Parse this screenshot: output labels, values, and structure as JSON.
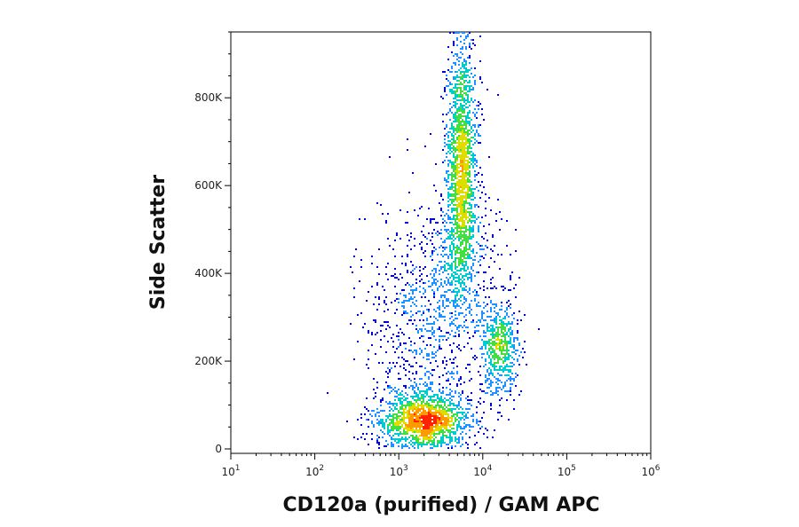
{
  "chart_data": {
    "type": "scatter",
    "title": "",
    "xlabel": "CD120a (purified) / GAM APC",
    "ylabel": "Side Scatter",
    "x_scale": "log",
    "xlim": [
      10,
      1000000
    ],
    "ylim": [
      0,
      950000
    ],
    "x_ticks": [
      {
        "base": "10",
        "exp": "1",
        "value": 10
      },
      {
        "base": "10",
        "exp": "2",
        "value": 100
      },
      {
        "base": "10",
        "exp": "3",
        "value": 1000
      },
      {
        "base": "10",
        "exp": "4",
        "value": 10000
      },
      {
        "base": "10",
        "exp": "5",
        "value": 100000
      },
      {
        "base": "10",
        "exp": "6",
        "value": 1000000
      }
    ],
    "y_ticks": [
      {
        "label": "0",
        "value": 0
      },
      {
        "label": "200K",
        "value": 200000
      },
      {
        "label": "400K",
        "value": 400000
      },
      {
        "label": "600K",
        "value": 600000
      },
      {
        "label": "800K",
        "value": 800000
      }
    ],
    "grid": false,
    "color_scale": [
      "#0000cc",
      "#1e90ff",
      "#00cccc",
      "#44dd44",
      "#dddd00",
      "#ff9900",
      "#ff2200"
    ],
    "populations": [
      {
        "x_center": 2000,
        "y_center": 65000,
        "x_spread_decades": 0.28,
        "y_spread": 32000,
        "weight": 0.3
      },
      {
        "x_center": 5600,
        "y_center": 640000,
        "x_spread_decades": 0.09,
        "y_spread": 150000,
        "weight": 0.34
      },
      {
        "x_center": 16000,
        "y_center": 230000,
        "x_spread_decades": 0.12,
        "y_spread": 55000,
        "weight": 0.12
      },
      {
        "x_center": 1800,
        "y_center": 250000,
        "x_spread_decades": 0.35,
        "y_spread": 130000,
        "weight": 0.14
      },
      {
        "x_center": 5000,
        "y_center": 420000,
        "x_spread_decades": 0.25,
        "y_spread": 90000,
        "weight": 0.1
      }
    ]
  }
}
